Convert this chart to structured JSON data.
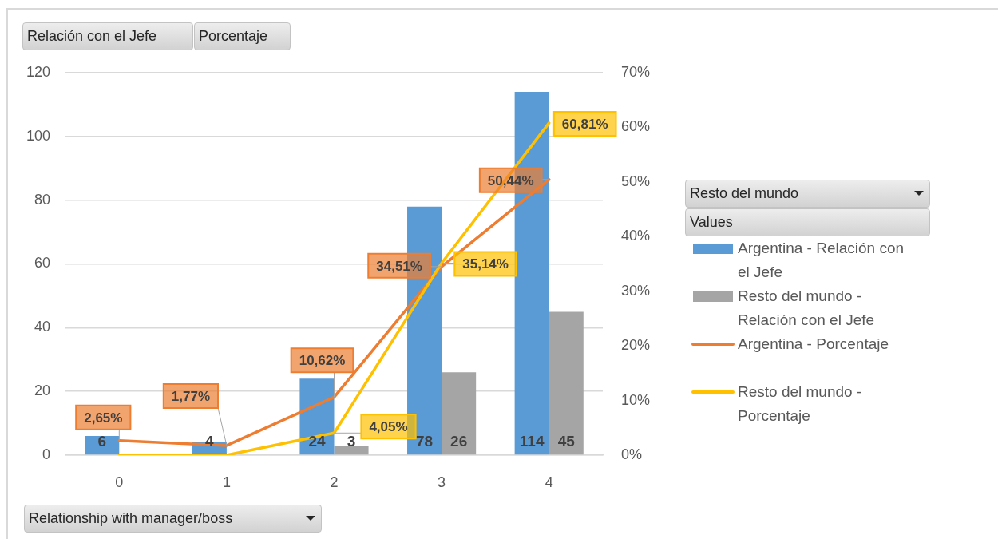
{
  "chart_data": {
    "type": "bar",
    "categories": [
      "0",
      "1",
      "2",
      "3",
      "4"
    ],
    "series": [
      {
        "name": "Argentina - Relación con el Jefe",
        "color": "#5b9bd5",
        "values": [
          6,
          4,
          24,
          78,
          114
        ],
        "value_labels": [
          "6",
          "4",
          "24",
          "78",
          "114"
        ]
      },
      {
        "name": "Resto del mundo - Relación con el Jefe",
        "color": "#a5a5a5",
        "values": [
          null,
          null,
          3,
          26,
          45
        ],
        "value_labels": [
          null,
          null,
          "3",
          "26",
          "45"
        ]
      },
      {
        "name": "Argentina - Porcentaje",
        "type": "line",
        "axis": "y2",
        "color": "#ed7d31",
        "values": [
          2.65,
          1.77,
          10.62,
          34.51,
          50.44
        ],
        "value_labels": [
          "2,65%",
          "1,77%",
          "10,62%",
          "34,51%",
          "50,44%"
        ]
      },
      {
        "name": "Resto del mundo - Porcentaje",
        "type": "line",
        "axis": "y2",
        "color": "#ffc000",
        "values": [
          0,
          0,
          4.05,
          35.14,
          60.81
        ],
        "value_labels": [
          null,
          null,
          "4,05%",
          "35,14%",
          "60,81%"
        ]
      }
    ],
    "ylim": [
      0,
      120
    ],
    "yticks": [
      0,
      20,
      40,
      60,
      80,
      100,
      120
    ],
    "y2lim": [
      0,
      70
    ],
    "y2ticks": [
      {
        "value": 0,
        "label": "0%"
      },
      {
        "value": 10,
        "label": "10%"
      },
      {
        "value": 20,
        "label": "20%"
      },
      {
        "value": 30,
        "label": "30%"
      },
      {
        "value": 40,
        "label": "40%"
      },
      {
        "value": 50,
        "label": "50%"
      },
      {
        "value": 60,
        "label": "60%"
      },
      {
        "value": 70,
        "label": "70%"
      }
    ],
    "xlabel": "Relationship with manager/boss",
    "legend_title": "Values",
    "annotations": [
      "Relación con el Jefe",
      "Porcentaje",
      "Resto del mundo"
    ],
    "grid": "y",
    "legend": "right"
  }
}
